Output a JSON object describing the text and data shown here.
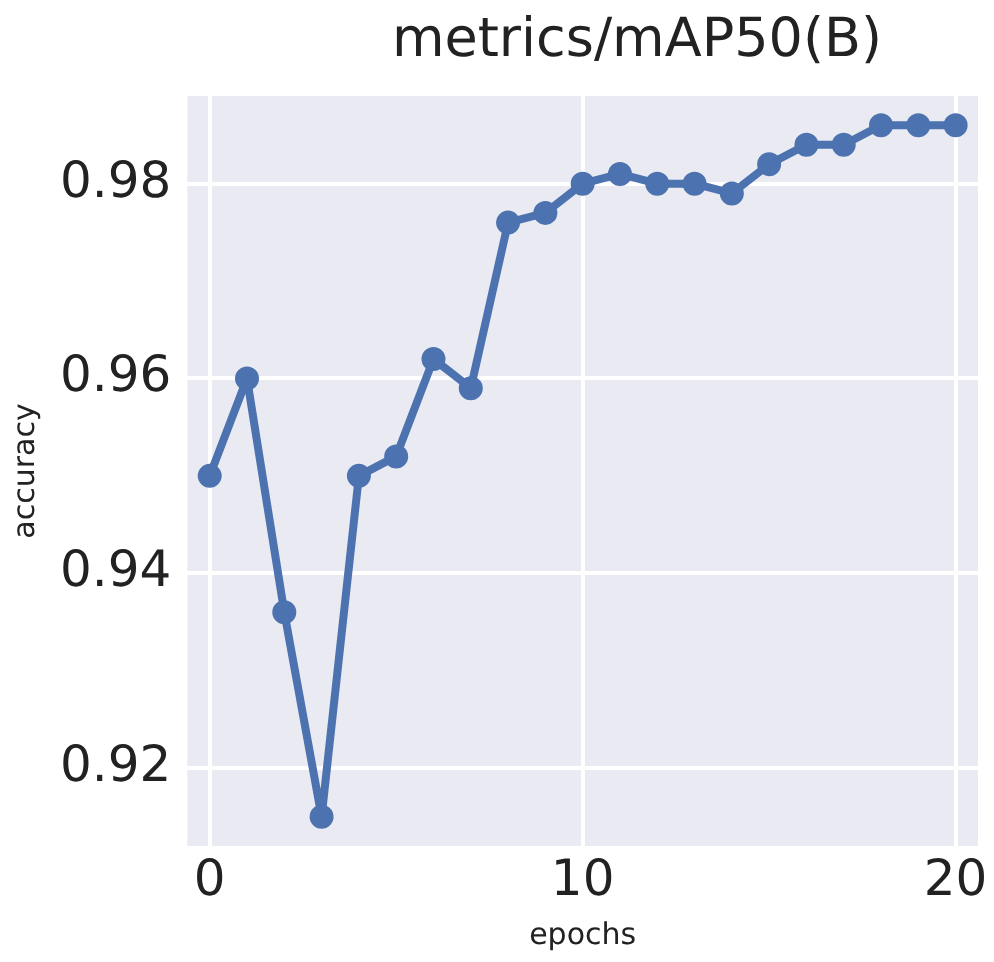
{
  "chart_data": {
    "type": "line",
    "title": "metrics/mAP50(B)",
    "xlabel": "epochs",
    "ylabel": "accuracy",
    "x": [
      0,
      1,
      2,
      3,
      4,
      5,
      6,
      7,
      8,
      9,
      10,
      11,
      12,
      13,
      14,
      15,
      16,
      17,
      18,
      19,
      20
    ],
    "series": [
      {
        "color": "#4c72b0",
        "values": [
          0.95,
          0.96,
          0.936,
          0.915,
          0.95,
          0.952,
          0.962,
          0.959,
          0.976,
          0.977,
          0.98,
          0.981,
          0.98,
          0.98,
          0.979,
          0.982,
          0.984,
          0.984,
          0.986,
          0.986,
          0.986
        ]
      }
    ],
    "xlim": [
      -0.6,
      20.6
    ],
    "ylim": [
      0.912,
      0.989
    ],
    "xticks": [
      0,
      10,
      20
    ],
    "yticks": [
      0.92,
      0.94,
      0.96,
      0.98
    ],
    "grid": true,
    "legend": false,
    "marker": "circle",
    "line_style": "solid"
  }
}
